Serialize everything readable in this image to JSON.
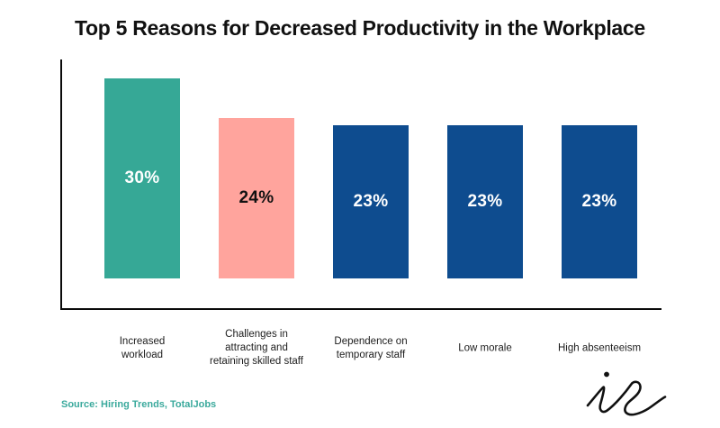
{
  "title": "Top 5 Reasons for Decreased Productivity in the Workplace",
  "source": {
    "text": "Source: Hiring Trends, TotalJobs"
  },
  "logo": {
    "name": "ie-signature"
  },
  "colors": {
    "teal": "#36A896",
    "pink": "#FFA49D",
    "blue": "#0E4C8F",
    "title_text": "#111111",
    "axis": "#0A0A0A",
    "category_text": "#1C1C1C",
    "source_text": "#3AA99C",
    "signature": "#111111"
  },
  "chart_data": {
    "type": "bar",
    "title": "Top 5 Reasons for Decreased Productivity in the Workplace",
    "categories": [
      "Increased workload",
      "Challenges in attracting and retaining skilled staff",
      "Dependence on temporary staff",
      "Low morale",
      "High absenteeism"
    ],
    "category_lines": [
      [
        "Increased",
        "workload"
      ],
      [
        "Challenges in",
        "attracting and",
        "retaining skilled staff"
      ],
      [
        "Dependence on",
        "temporary staff"
      ],
      [
        "Low morale"
      ],
      [
        "High absenteeism"
      ]
    ],
    "values": [
      30,
      24,
      23,
      23,
      23
    ],
    "value_labels": [
      "30%",
      "24%",
      "23%",
      "23%",
      "23%"
    ],
    "unit": "%",
    "bar_colors": [
      "#36A896",
      "#FFA49D",
      "#0E4C8F",
      "#0E4C8F",
      "#0E4C8F"
    ],
    "value_label_colors": [
      "#FFFFFF",
      "#111111",
      "#FFFFFF",
      "#FFFFFF",
      "#FFFFFF"
    ],
    "xlabel": "",
    "ylabel": "",
    "ylim": [
      0,
      33
    ],
    "grid": false,
    "legend": false,
    "axis_lines": [
      "left",
      "bottom"
    ]
  }
}
